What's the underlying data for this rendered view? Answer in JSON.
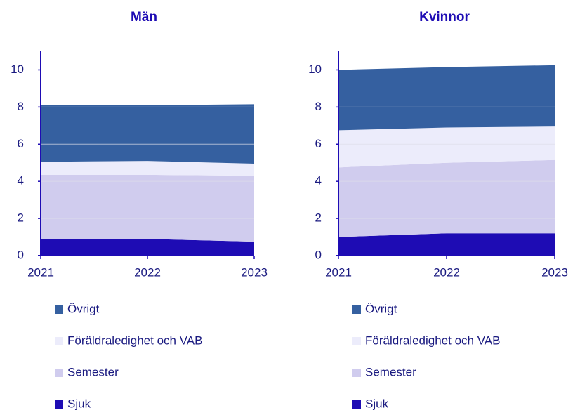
{
  "chart_data": [
    {
      "type": "area",
      "stacked": true,
      "title": "Män",
      "x": [
        2021,
        2022,
        2023
      ],
      "xlim": [
        2021,
        2023
      ],
      "xticks": [
        2021,
        2022,
        2023
      ],
      "ylim": [
        0,
        11
      ],
      "yticks": [
        0,
        2,
        4,
        6,
        8,
        10
      ],
      "grid": true,
      "series": [
        {
          "name": "Sjuk",
          "color": "#1e0cb4",
          "values": [
            0.9,
            0.9,
            0.75
          ]
        },
        {
          "name": "Semester",
          "color": "#d0ccee",
          "values": [
            3.45,
            3.45,
            3.55
          ]
        },
        {
          "name": "Föräldraledighet och VAB",
          "color": "#ececfb",
          "values": [
            0.7,
            0.75,
            0.65
          ]
        },
        {
          "name": "Övrigt",
          "color": "#3560a0",
          "values": [
            3.05,
            3.0,
            3.2
          ]
        }
      ]
    },
    {
      "type": "area",
      "stacked": true,
      "title": "Kvinnor",
      "x": [
        2021,
        2022,
        2023
      ],
      "xlim": [
        2021,
        2023
      ],
      "xticks": [
        2021,
        2022,
        2023
      ],
      "ylim": [
        0,
        11
      ],
      "yticks": [
        0,
        2,
        4,
        6,
        8,
        10
      ],
      "grid": true,
      "series": [
        {
          "name": "Sjuk",
          "color": "#1e0cb4",
          "values": [
            1.0,
            1.2,
            1.2
          ]
        },
        {
          "name": "Semester",
          "color": "#d0ccee",
          "values": [
            3.75,
            3.8,
            3.95
          ]
        },
        {
          "name": "Föräldraledighet och VAB",
          "color": "#ececfb",
          "values": [
            2.0,
            1.9,
            1.8
          ]
        },
        {
          "name": "Övrigt",
          "color": "#3560a0",
          "values": [
            3.25,
            3.25,
            3.3
          ]
        }
      ]
    }
  ]
}
